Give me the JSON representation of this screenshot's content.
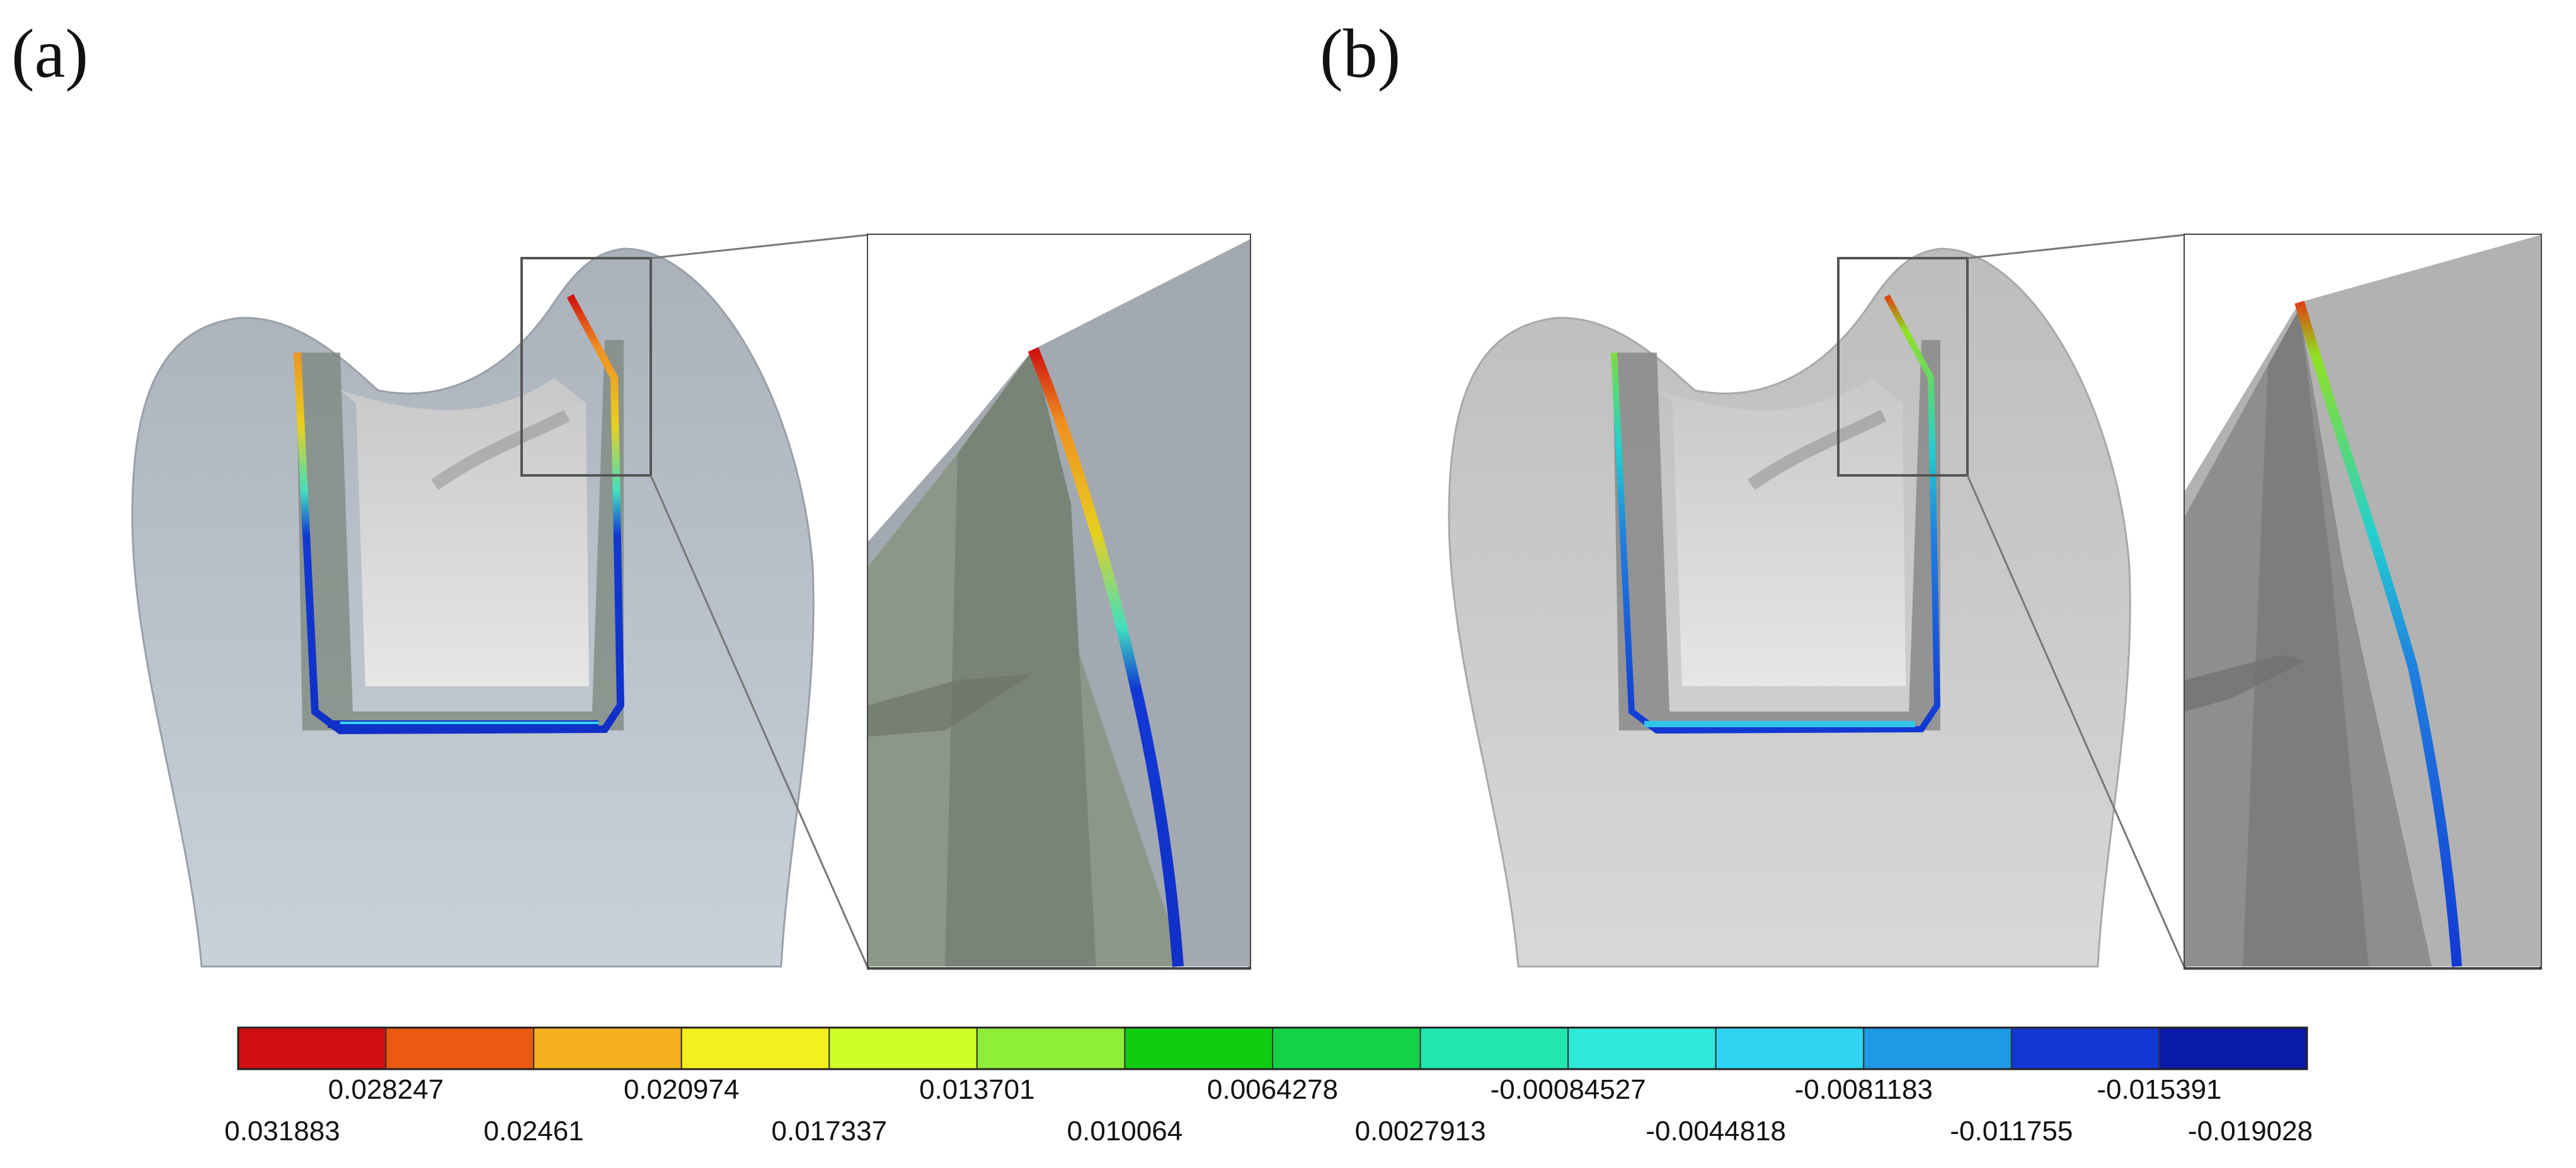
{
  "panel_labels": {
    "a": "(a)",
    "b": "(b)"
  },
  "colorbar": {
    "colors": [
      "#d01010",
      "#ea5a10",
      "#f5b020",
      "#f4f020",
      "#cfff28",
      "#8fee38",
      "#10cc10",
      "#14d14a",
      "#22e6b0",
      "#2ee8d8",
      "#30d4f2",
      "#1f98e6",
      "#1238d4",
      "#0a1aa8"
    ],
    "labels_top": [
      "0.028247",
      "0.020974",
      "0.013701",
      "0.0064278",
      "-0.00084527",
      "-0.0081183",
      "-0.015391"
    ],
    "labels_bottom": [
      "0.031883",
      "0.02461",
      "0.017337",
      "0.010064",
      "0.0027913",
      "-0.0044818",
      "-0.011755",
      "-0.019028"
    ]
  }
}
